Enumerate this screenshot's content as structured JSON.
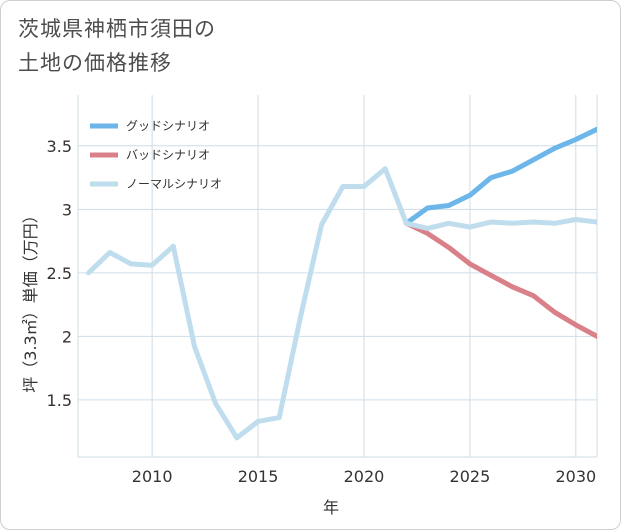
{
  "title_line1": "茨城県神栖市須田の",
  "title_line2": "土地の価格推移",
  "chart_data": {
    "type": "line",
    "xlabel": "年",
    "ylabel": "坪（3.3㎡）単価（万円）",
    "xlim": [
      2006.5,
      2031
    ],
    "ylim": [
      1.05,
      3.9
    ],
    "x_ticks": [
      2010,
      2015,
      2020,
      2025,
      2030
    ],
    "y_ticks": [
      1.5,
      2,
      2.5,
      3,
      3.5
    ],
    "x_tick_labels": [
      "2010",
      "2015",
      "2020",
      "2025",
      "2030"
    ],
    "y_tick_labels": [
      "1.5",
      "2",
      "2.5",
      "3",
      "3.5"
    ],
    "grid": true,
    "legend_position": "top-left",
    "series": [
      {
        "name": "グッドシナリオ",
        "color": "#6cb6ea",
        "x": [
          2022,
          2023,
          2024,
          2025,
          2026,
          2027,
          2028,
          2029,
          2030,
          2031
        ],
        "y": [
          2.89,
          3.01,
          3.03,
          3.11,
          3.25,
          3.3,
          3.39,
          3.48,
          3.55,
          3.63
        ]
      },
      {
        "name": "バッドシナリオ",
        "color": "#d98088",
        "x": [
          2022,
          2023,
          2024,
          2025,
          2026,
          2027,
          2028,
          2029,
          2030,
          2031
        ],
        "y": [
          2.89,
          2.81,
          2.7,
          2.57,
          2.48,
          2.39,
          2.32,
          2.19,
          2.09,
          2.0
        ]
      },
      {
        "name": "ノーマルシナリオ",
        "color": "#bfdded",
        "x": [
          2007,
          2008,
          2009,
          2010,
          2011,
          2012,
          2013,
          2014,
          2015,
          2016,
          2017,
          2018,
          2019,
          2020,
          2021,
          2022,
          2023,
          2024,
          2025,
          2026,
          2027,
          2028,
          2029,
          2030,
          2031
        ],
        "y": [
          2.5,
          2.66,
          2.57,
          2.56,
          2.71,
          1.92,
          1.47,
          1.2,
          1.33,
          1.36,
          2.15,
          2.88,
          3.18,
          3.18,
          3.32,
          2.89,
          2.85,
          2.89,
          2.86,
          2.9,
          2.89,
          2.9,
          2.89,
          2.92,
          2.9
        ]
      }
    ]
  }
}
